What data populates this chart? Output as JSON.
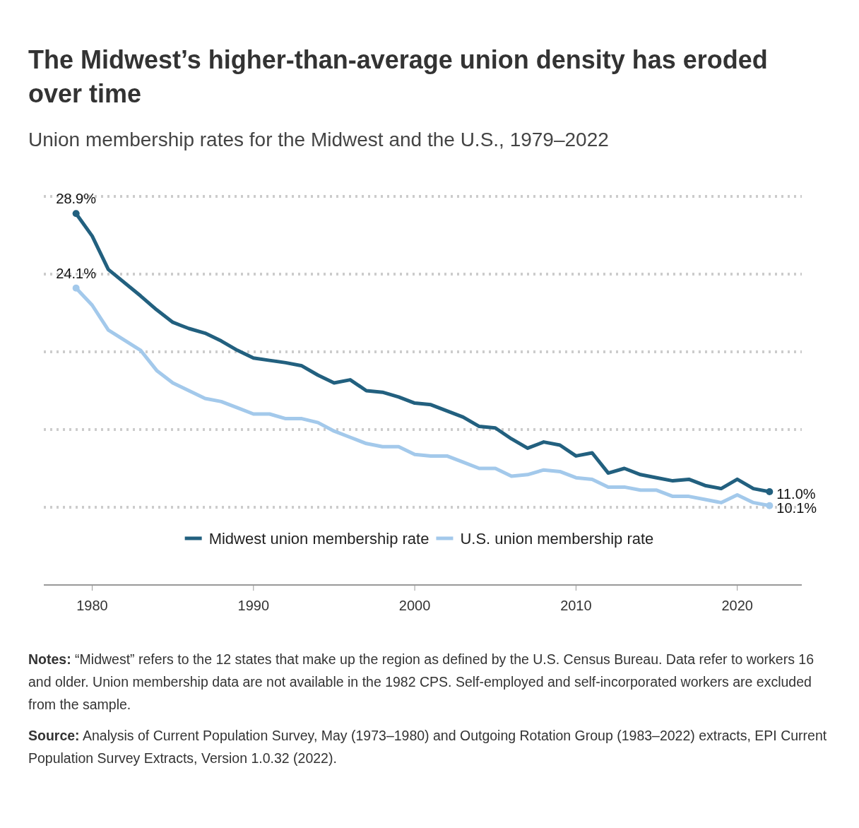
{
  "chart_data": {
    "type": "line",
    "title": "The Midwest’s higher-than-average union density has eroded over time",
    "subtitle": "Union membership rates for the Midwest and the U.S., 1979–2022",
    "x": [
      1979,
      1980,
      1981,
      1983,
      1984,
      1985,
      1986,
      1987,
      1988,
      1989,
      1990,
      1991,
      1992,
      1993,
      1994,
      1995,
      1996,
      1997,
      1998,
      1999,
      2000,
      2001,
      2002,
      2003,
      2004,
      2005,
      2006,
      2007,
      2008,
      2009,
      2010,
      2011,
      2012,
      2013,
      2014,
      2015,
      2016,
      2017,
      2018,
      2019,
      2020,
      2021,
      2022
    ],
    "series": [
      {
        "name": "Midwest union membership rate",
        "color": "#22607f",
        "values": [
          28.9,
          27.45,
          25.3,
          23.6,
          22.7,
          21.9,
          21.5,
          21.2,
          20.7,
          20.1,
          19.6,
          19.45,
          19.3,
          19.1,
          18.5,
          18.0,
          18.2,
          17.5,
          17.4,
          17.1,
          16.7,
          16.6,
          16.2,
          15.8,
          15.2,
          15.1,
          14.4,
          13.8,
          14.2,
          14.0,
          13.3,
          13.5,
          12.2,
          12.5,
          12.1,
          11.9,
          11.7,
          11.8,
          11.4,
          11.2,
          11.8,
          11.2,
          11.0
        ],
        "value_labels": [
          "28.9%",
          null,
          null,
          null,
          null,
          null,
          null,
          null,
          null,
          null,
          null,
          null,
          null,
          null,
          null,
          null,
          null,
          null,
          null,
          null,
          null,
          null,
          null,
          null,
          null,
          null,
          null,
          null,
          null,
          null,
          null,
          null,
          null,
          null,
          null,
          null,
          null,
          null,
          null,
          null,
          null,
          null,
          "11.0%"
        ]
      },
      {
        "name": "U.S. union membership rate",
        "color": "#a3c9eb",
        "values": [
          24.1,
          23.0,
          21.4,
          20.1,
          18.8,
          18.0,
          17.5,
          17.0,
          16.8,
          16.4,
          16.0,
          16.0,
          15.7,
          15.7,
          15.45,
          14.9,
          14.5,
          14.1,
          13.9,
          13.9,
          13.4,
          13.3,
          13.3,
          12.9,
          12.5,
          12.5,
          12.0,
          12.1,
          12.4,
          12.3,
          11.9,
          11.8,
          11.3,
          11.3,
          11.1,
          11.1,
          10.7,
          10.7,
          10.5,
          10.3,
          10.8,
          10.3,
          10.1
        ],
        "value_labels": [
          "24.1%",
          null,
          null,
          null,
          null,
          null,
          null,
          null,
          null,
          null,
          null,
          null,
          null,
          null,
          null,
          null,
          null,
          null,
          null,
          null,
          null,
          null,
          null,
          null,
          null,
          null,
          null,
          null,
          null,
          null,
          null,
          null,
          null,
          null,
          null,
          null,
          null,
          null,
          null,
          null,
          null,
          null,
          "10.1%"
        ]
      }
    ],
    "xlim": [
      1977,
      2024
    ],
    "xticks": [
      1980,
      1990,
      2000,
      2010,
      2020
    ],
    "ylim": [
      5,
      30
    ],
    "yticks": [
      {
        "value": 10,
        "label": null
      },
      {
        "value": 15,
        "label": null
      },
      {
        "value": 20,
        "label": null
      },
      {
        "value": 25,
        "label": null
      },
      {
        "value": 30,
        "label": null
      }
    ],
    "grid": "y",
    "legend": "bottom",
    "annotations": [
      "Notes: “Midwest” refers to the 12 states that make up the region as defined by the U.S. Census Bureau. Data refer to workers 16 and older. Union membership data are not available in the 1982 CPS. Self-employed and self-incorporated workers are excluded from the sample.",
      "Source: Analysis of Current Population Survey, May (1973–1980) and Outgoing Rotation Group (1983–2022) extracts, EPI Current Population Survey Extracts, Version 1.0.32 (2022)."
    ]
  }
}
